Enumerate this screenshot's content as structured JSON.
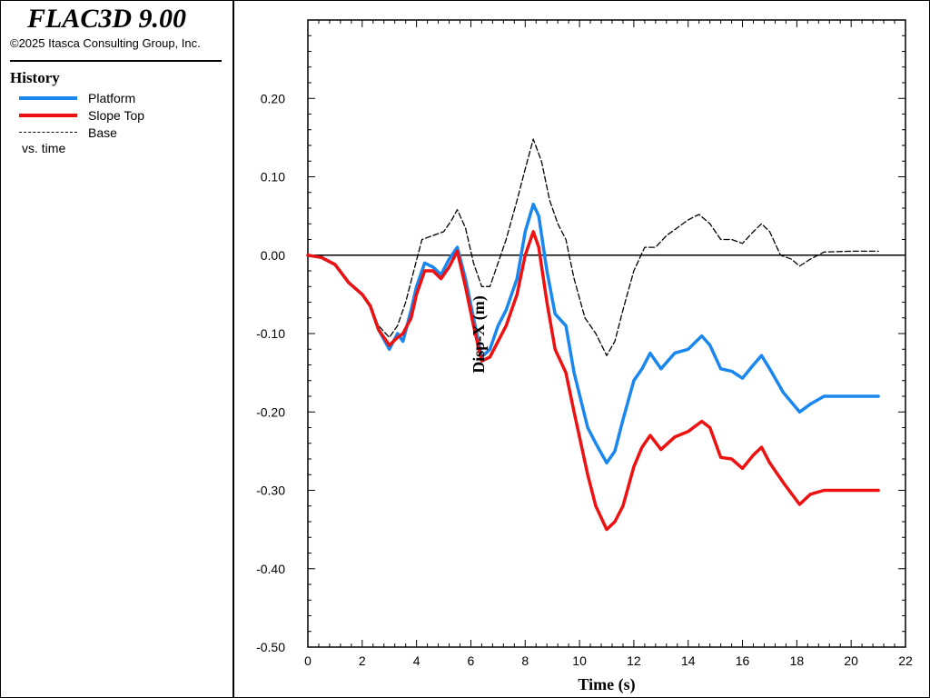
{
  "app": {
    "title": "FLAC3D 9.00",
    "copyright": "©2025 Itasca Consulting Group, Inc."
  },
  "legend_panel": {
    "heading": "History",
    "note": "vs. time"
  },
  "colors": {
    "platform": "#1a87ee",
    "slope_top": "#ee1111",
    "base": "#000000",
    "axis": "#000000"
  },
  "chart_data": {
    "type": "line",
    "xlabel": "Time (s)",
    "ylabel": "Disp-X (m)",
    "xlim": [
      0,
      22
    ],
    "ylim": [
      -0.5,
      0.3
    ],
    "xticks": [
      "0",
      "2",
      "4",
      "6",
      "8",
      "10",
      "12",
      "14",
      "16",
      "18",
      "20",
      "22"
    ],
    "yticks": [
      "0.20",
      "0.10",
      "0.00",
      "-0.10",
      "-0.20",
      "-0.30",
      "-0.40",
      "-0.50"
    ],
    "ytick_values": [
      0.2,
      0.1,
      0.0,
      -0.1,
      -0.2,
      -0.3,
      -0.4,
      -0.5
    ],
    "xtick_values": [
      0,
      2,
      4,
      6,
      8,
      10,
      12,
      14,
      16,
      18,
      20,
      22
    ],
    "zero_line": true,
    "series": [
      {
        "name": "Platform",
        "style": "solid",
        "points": [
          [
            0,
            0
          ],
          [
            0.5,
            -0.003
          ],
          [
            1,
            -0.012
          ],
          [
            1.5,
            -0.035
          ],
          [
            2,
            -0.05
          ],
          [
            2.3,
            -0.065
          ],
          [
            2.6,
            -0.095
          ],
          [
            3.0,
            -0.12
          ],
          [
            3.3,
            -0.1
          ],
          [
            3.5,
            -0.11
          ],
          [
            3.8,
            -0.07
          ],
          [
            4.0,
            -0.04
          ],
          [
            4.3,
            -0.01
          ],
          [
            4.6,
            -0.015
          ],
          [
            4.9,
            -0.025
          ],
          [
            5.2,
            -0.005
          ],
          [
            5.5,
            0.01
          ],
          [
            5.8,
            -0.03
          ],
          [
            6.1,
            -0.08
          ],
          [
            6.4,
            -0.13
          ],
          [
            6.7,
            -0.12
          ],
          [
            7.0,
            -0.09
          ],
          [
            7.3,
            -0.07
          ],
          [
            7.7,
            -0.03
          ],
          [
            8.0,
            0.03
          ],
          [
            8.3,
            0.065
          ],
          [
            8.5,
            0.05
          ],
          [
            8.8,
            -0.02
          ],
          [
            9.1,
            -0.075
          ],
          [
            9.5,
            -0.09
          ],
          [
            9.8,
            -0.15
          ],
          [
            10.3,
            -0.22
          ],
          [
            10.6,
            -0.24
          ],
          [
            11.0,
            -0.265
          ],
          [
            11.3,
            -0.25
          ],
          [
            11.6,
            -0.21
          ],
          [
            12.0,
            -0.16
          ],
          [
            12.3,
            -0.145
          ],
          [
            12.6,
            -0.125
          ],
          [
            13.0,
            -0.145
          ],
          [
            13.5,
            -0.125
          ],
          [
            14.0,
            -0.12
          ],
          [
            14.5,
            -0.103
          ],
          [
            14.8,
            -0.115
          ],
          [
            15.2,
            -0.145
          ],
          [
            15.6,
            -0.148
          ],
          [
            16.0,
            -0.157
          ],
          [
            16.4,
            -0.14
          ],
          [
            16.7,
            -0.128
          ],
          [
            17.0,
            -0.145
          ],
          [
            17.5,
            -0.175
          ],
          [
            18.1,
            -0.2
          ],
          [
            18.5,
            -0.19
          ],
          [
            19.0,
            -0.18
          ],
          [
            20.0,
            -0.18
          ],
          [
            21.0,
            -0.18
          ]
        ]
      },
      {
        "name": "Slope Top",
        "style": "solid",
        "points": [
          [
            0,
            0
          ],
          [
            0.5,
            -0.003
          ],
          [
            1,
            -0.012
          ],
          [
            1.5,
            -0.035
          ],
          [
            2,
            -0.05
          ],
          [
            2.3,
            -0.065
          ],
          [
            2.6,
            -0.095
          ],
          [
            3.0,
            -0.115
          ],
          [
            3.3,
            -0.105
          ],
          [
            3.5,
            -0.1
          ],
          [
            3.8,
            -0.08
          ],
          [
            4.0,
            -0.05
          ],
          [
            4.3,
            -0.02
          ],
          [
            4.6,
            -0.02
          ],
          [
            4.9,
            -0.03
          ],
          [
            5.2,
            -0.015
          ],
          [
            5.5,
            0.005
          ],
          [
            5.8,
            -0.04
          ],
          [
            6.1,
            -0.09
          ],
          [
            6.4,
            -0.135
          ],
          [
            6.7,
            -0.13
          ],
          [
            7.0,
            -0.11
          ],
          [
            7.3,
            -0.09
          ],
          [
            7.7,
            -0.05
          ],
          [
            8.0,
            0.0
          ],
          [
            8.3,
            0.03
          ],
          [
            8.5,
            0.01
          ],
          [
            8.8,
            -0.06
          ],
          [
            9.1,
            -0.12
          ],
          [
            9.5,
            -0.15
          ],
          [
            9.8,
            -0.2
          ],
          [
            10.3,
            -0.28
          ],
          [
            10.6,
            -0.32
          ],
          [
            11.0,
            -0.35
          ],
          [
            11.3,
            -0.34
          ],
          [
            11.6,
            -0.32
          ],
          [
            12.0,
            -0.27
          ],
          [
            12.3,
            -0.245
          ],
          [
            12.6,
            -0.23
          ],
          [
            13.0,
            -0.248
          ],
          [
            13.5,
            -0.232
          ],
          [
            14.0,
            -0.225
          ],
          [
            14.5,
            -0.212
          ],
          [
            14.8,
            -0.22
          ],
          [
            15.2,
            -0.258
          ],
          [
            15.6,
            -0.26
          ],
          [
            16.0,
            -0.272
          ],
          [
            16.4,
            -0.255
          ],
          [
            16.7,
            -0.245
          ],
          [
            17.0,
            -0.265
          ],
          [
            17.5,
            -0.29
          ],
          [
            18.1,
            -0.318
          ],
          [
            18.5,
            -0.305
          ],
          [
            19.0,
            -0.3
          ],
          [
            20.0,
            -0.3
          ],
          [
            21.0,
            -0.3
          ]
        ]
      },
      {
        "name": "Base",
        "style": "dashed",
        "points": [
          [
            0,
            0
          ],
          [
            0.5,
            -0.003
          ],
          [
            1,
            -0.012
          ],
          [
            1.5,
            -0.035
          ],
          [
            2,
            -0.05
          ],
          [
            2.3,
            -0.065
          ],
          [
            2.6,
            -0.09
          ],
          [
            3.0,
            -0.105
          ],
          [
            3.3,
            -0.09
          ],
          [
            3.6,
            -0.06
          ],
          [
            3.9,
            -0.02
          ],
          [
            4.2,
            0.02
          ],
          [
            4.6,
            0.025
          ],
          [
            5.0,
            0.03
          ],
          [
            5.3,
            0.045
          ],
          [
            5.5,
            0.058
          ],
          [
            5.8,
            0.035
          ],
          [
            6.1,
            -0.01
          ],
          [
            6.4,
            -0.04
          ],
          [
            6.7,
            -0.04
          ],
          [
            7.0,
            -0.01
          ],
          [
            7.3,
            0.02
          ],
          [
            7.7,
            0.07
          ],
          [
            8.0,
            0.11
          ],
          [
            8.3,
            0.148
          ],
          [
            8.6,
            0.12
          ],
          [
            8.9,
            0.07
          ],
          [
            9.2,
            0.04
          ],
          [
            9.5,
            0.02
          ],
          [
            9.8,
            -0.03
          ],
          [
            10.2,
            -0.08
          ],
          [
            10.6,
            -0.1
          ],
          [
            11.0,
            -0.128
          ],
          [
            11.3,
            -0.11
          ],
          [
            11.6,
            -0.07
          ],
          [
            12.0,
            -0.02
          ],
          [
            12.4,
            0.01
          ],
          [
            12.8,
            0.01
          ],
          [
            13.2,
            0.025
          ],
          [
            13.6,
            0.035
          ],
          [
            14.0,
            0.045
          ],
          [
            14.4,
            0.052
          ],
          [
            14.8,
            0.04
          ],
          [
            15.2,
            0.02
          ],
          [
            15.6,
            0.02
          ],
          [
            16.0,
            0.015
          ],
          [
            16.4,
            0.03
          ],
          [
            16.7,
            0.04
          ],
          [
            17.0,
            0.03
          ],
          [
            17.4,
            0.0
          ],
          [
            17.8,
            -0.005
          ],
          [
            18.1,
            -0.014
          ],
          [
            18.5,
            -0.005
          ],
          [
            19.0,
            0.004
          ],
          [
            20.0,
            0.005
          ],
          [
            21.0,
            0.005
          ]
        ]
      }
    ]
  }
}
